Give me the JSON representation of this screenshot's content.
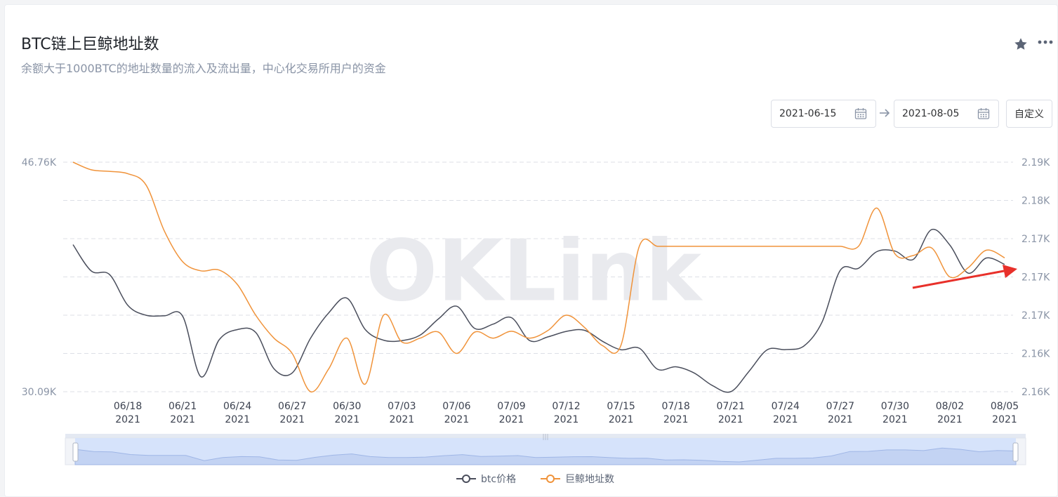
{
  "header": {
    "title": "BTC链上巨鲸地址数",
    "subtitle": "余额大于1000BTC的地址数量的流入及流出量，中心化交易所用户的资金"
  },
  "icons": {
    "favorite": "star-icon",
    "more": "more-horizontal-icon",
    "calendar": "calendar-icon",
    "range_arrow": "arrow-right-icon"
  },
  "date_range": {
    "start": "2021-06-15",
    "end": "2021-08-05",
    "custom_label": "自定义"
  },
  "watermark": "OKLink",
  "colors": {
    "btc": "#4a4e5c",
    "whale": "#f0933a",
    "grid": "#dcdfe6",
    "axis_text": "#8a94a6",
    "slider_fill": "#d6e3fb",
    "annotation_arrow": "#e8302a"
  },
  "chart_data": {
    "type": "line",
    "title": "",
    "grid": true,
    "legend_position": "bottom-center",
    "x": [
      "06/15",
      "06/16",
      "06/17",
      "06/18",
      "06/19",
      "06/20",
      "06/21",
      "06/22",
      "06/23",
      "06/24",
      "06/25",
      "06/26",
      "06/27",
      "06/28",
      "06/29",
      "06/30",
      "07/01",
      "07/02",
      "07/03",
      "07/04",
      "07/05",
      "07/06",
      "07/07",
      "07/08",
      "07/09",
      "07/10",
      "07/11",
      "07/12",
      "07/13",
      "07/14",
      "07/15",
      "07/16",
      "07/17",
      "07/18",
      "07/19",
      "07/20",
      "07/21",
      "07/22",
      "07/23",
      "07/24",
      "07/25",
      "07/26",
      "07/27",
      "07/28",
      "07/29",
      "07/30",
      "07/31",
      "08/01",
      "08/02",
      "08/03",
      "08/04",
      "08/05"
    ],
    "x_tick_labels": [
      {
        "date": "06/18",
        "year": "2021"
      },
      {
        "date": "06/21",
        "year": "2021"
      },
      {
        "date": "06/24",
        "year": "2021"
      },
      {
        "date": "06/27",
        "year": "2021"
      },
      {
        "date": "06/30",
        "year": "2021"
      },
      {
        "date": "07/03",
        "year": "2021"
      },
      {
        "date": "07/06",
        "year": "2021"
      },
      {
        "date": "07/09",
        "year": "2021"
      },
      {
        "date": "07/12",
        "year": "2021"
      },
      {
        "date": "07/15",
        "year": "2021"
      },
      {
        "date": "07/18",
        "year": "2021"
      },
      {
        "date": "07/21",
        "year": "2021"
      },
      {
        "date": "07/24",
        "year": "2021"
      },
      {
        "date": "07/27",
        "year": "2021"
      },
      {
        "date": "07/30",
        "year": "2021"
      },
      {
        "date": "08/02",
        "year": "2021"
      },
      {
        "date": "08/05",
        "year": "2021"
      }
    ],
    "y_left": {
      "ylim": [
        30090,
        46760
      ],
      "tick_labels": [
        "46.76K",
        "30.09K"
      ]
    },
    "y_right": {
      "ylim": [
        2160,
        2190
      ],
      "tick_labels": [
        "2.19K",
        "2.18K",
        "2.17K",
        "2.17K",
        "2.17K",
        "2.16K",
        "2.16K"
      ]
    },
    "series": [
      {
        "name": "btc价格",
        "axis": "left",
        "color": "#4a4e5c",
        "values": [
          40770,
          38860,
          38600,
          36360,
          35640,
          35600,
          35580,
          31180,
          33860,
          34600,
          34400,
          31760,
          31450,
          33970,
          35820,
          36880,
          34600,
          33830,
          33800,
          34200,
          35370,
          36300,
          34680,
          35000,
          35470,
          33800,
          34070,
          34470,
          34550,
          33740,
          33140,
          33250,
          31720,
          31900,
          31450,
          30540,
          30090,
          31560,
          33130,
          33150,
          33400,
          35130,
          38900,
          39050,
          40260,
          40300,
          39700,
          41860,
          40740,
          38700,
          39800,
          39330
        ]
      },
      {
        "name": "巨鲸地址数",
        "axis": "right",
        "color": "#f0933a",
        "values": [
          2190,
          2189,
          2188.8,
          2188.5,
          2187,
          2181,
          2177,
          2175.8,
          2175.9,
          2174,
          2170,
          2167,
          2165,
          2160,
          2163,
          2167,
          2161,
          2170,
          2166.5,
          2167,
          2167.8,
          2165,
          2167.8,
          2167,
          2167.9,
          2167,
          2168,
          2170,
          2168.4,
          2166,
          2166.1,
          2179,
          2179,
          2179,
          2179,
          2179,
          2179,
          2179,
          2179,
          2179,
          2179,
          2179,
          2179,
          2179,
          2184,
          2178,
          2177.8,
          2178.8,
          2175,
          2176.2,
          2178.5,
          2177.5
        ]
      }
    ]
  }
}
